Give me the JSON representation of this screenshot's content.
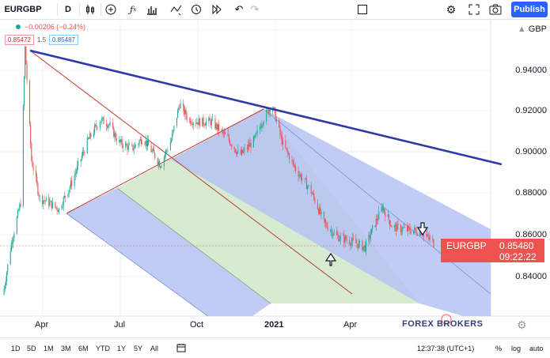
{
  "toolbar": {
    "symbol": "EURGBP",
    "interval": "D",
    "publish_label": "Publish"
  },
  "legend": {
    "change": "−0.00206 (−0.24%)",
    "bid": "0.85472",
    "spread": "1.5",
    "ask": "0.85487"
  },
  "axis": {
    "currency": "GBP",
    "y_ticks": [
      "0.94000",
      "0.92000",
      "0.90000",
      "0.88000",
      "0.86000",
      "0.84000"
    ],
    "x_ticks": [
      "Apr",
      "Jul",
      "Oct",
      "2021",
      "Apr"
    ]
  },
  "price_tag": {
    "symbol": "EURGBP",
    "price": "0.85480",
    "countdown": "09:22:22"
  },
  "watermark": "FOREX BROKERS",
  "bottom_bar": {
    "ranges": [
      "1D",
      "5D",
      "1M",
      "3M",
      "6M",
      "YTD",
      "1Y",
      "5Y",
      "All"
    ],
    "time": "12:37:38 (UTC+1)",
    "percent": "%",
    "log": "log",
    "auto": "auto"
  },
  "colors": {
    "trendline": "#2e3aa8",
    "fork_red": "#c0392b",
    "band_blue": "#b5c3f2",
    "band_green": "#cfe8c8",
    "candle_up": "#26a69a",
    "candle_down": "#ef5350",
    "accent": "#2962ff",
    "tag_red": "#ef5350"
  },
  "chart_data": {
    "type": "line",
    "title": "EURGBP",
    "xlabel": "",
    "ylabel": "",
    "ylim": [
      0.826,
      0.952
    ],
    "x": [
      "2020-03-01",
      "2020-03-10",
      "2020-03-20",
      "2020-03-25",
      "2020-04-01",
      "2020-04-10",
      "2020-04-20",
      "2020-05-01",
      "2020-05-15",
      "2020-06-01",
      "2020-06-15",
      "2020-06-25",
      "2020-07-05",
      "2020-07-20",
      "2020-08-01",
      "2020-08-20",
      "2020-09-01",
      "2020-09-10",
      "2020-09-20",
      "2020-10-01",
      "2020-10-15",
      "2020-11-01",
      "2020-11-15",
      "2020-12-01",
      "2020-12-10",
      "2020-12-20",
      "2021-01-01",
      "2021-01-15",
      "2021-02-01",
      "2021-02-15",
      "2021-03-01",
      "2021-03-15",
      "2021-04-01",
      "2021-04-10",
      "2021-04-20",
      "2021-05-01",
      "2021-05-15",
      "2021-06-01",
      "2021-06-15"
    ],
    "series": [
      {
        "values": [
          0.832,
          0.855,
          0.873,
          0.942,
          0.892,
          0.875,
          0.873,
          0.87,
          0.882,
          0.9,
          0.91,
          0.908,
          0.9,
          0.897,
          0.902,
          0.89,
          0.901,
          0.917,
          0.91,
          0.909,
          0.909,
          0.902,
          0.894,
          0.901,
          0.91,
          0.917,
          0.899,
          0.888,
          0.878,
          0.864,
          0.858,
          0.856,
          0.853,
          0.862,
          0.871,
          0.862,
          0.861,
          0.86,
          0.855
        ]
      }
    ]
  }
}
